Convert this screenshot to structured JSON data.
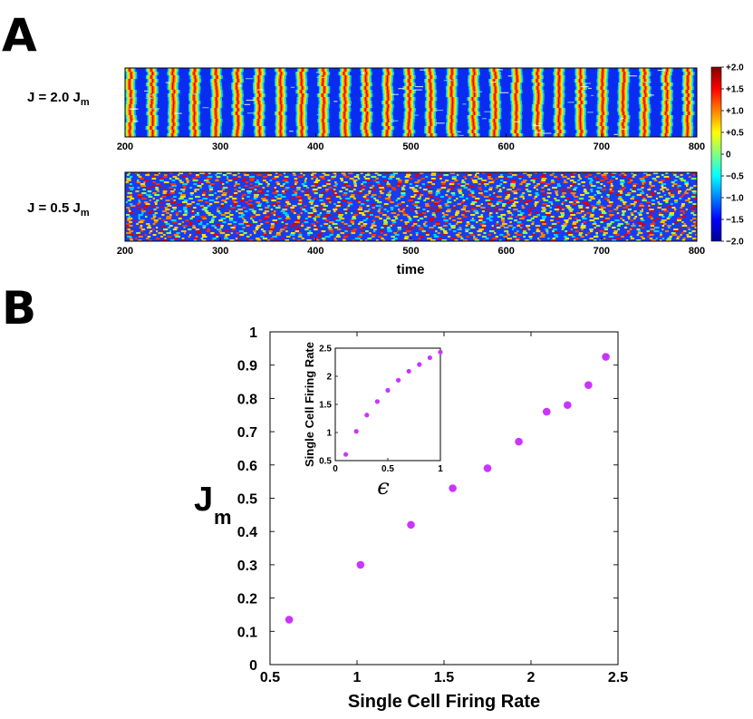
{
  "panels": {
    "a_letter": "A",
    "b_letter": "B"
  },
  "chart_data": [
    {
      "type": "heatmap",
      "panel": "A",
      "rows": [
        {
          "label_main": "J = 2.0 J",
          "label_sub": "m",
          "pattern": "synchronous",
          "band_period": 22.5
        },
        {
          "label_main": "J = 0.5 J",
          "label_sub": "m",
          "pattern": "asynchronous"
        }
      ],
      "xlim": [
        200,
        800
      ],
      "xticks": [
        "200",
        "300",
        "400",
        "500",
        "600",
        "700",
        "800"
      ],
      "xlabel": "time",
      "colorbar": {
        "range": [
          -2.0,
          2.0
        ],
        "ticks": [
          "+2.0",
          "+1.5",
          "+1.0",
          "+0.5",
          "0",
          "−0.5",
          "−1.0",
          "−1.5",
          "−2.0"
        ],
        "colors": [
          "#00008f",
          "#0000ff",
          "#0080ff",
          "#00ffff",
          "#80ff80",
          "#ffff00",
          "#ff8000",
          "#ff0000",
          "#800000"
        ]
      }
    },
    {
      "type": "scatter",
      "panel": "B",
      "xlabel": "Single Cell Firing Rate",
      "ylabel_main": "J",
      "ylabel_sub": "m",
      "xlim": [
        0.5,
        2.5
      ],
      "ylim": [
        0,
        1
      ],
      "xticks": [
        "0.5",
        "1",
        "1.5",
        "2",
        "2.5"
      ],
      "yticks": [
        "0",
        "0.1",
        "0.2",
        "0.3",
        "0.4",
        "0.5",
        "0.6",
        "0.7",
        "0.8",
        "0.9",
        "1"
      ],
      "x": [
        0.61,
        1.02,
        1.31,
        1.55,
        1.75,
        1.93,
        2.09,
        2.21,
        2.33,
        2.43
      ],
      "y": [
        0.135,
        0.3,
        0.42,
        0.53,
        0.59,
        0.67,
        0.76,
        0.78,
        0.84,
        0.925
      ],
      "marker_color": "#cc33ff",
      "inset": {
        "type": "scatter",
        "xlabel": "ϵ",
        "ylabel": "Single Cell Firing Rate",
        "xlim": [
          0,
          1
        ],
        "ylim": [
          0.5,
          2.5
        ],
        "xticks": [
          "0",
          "0.5",
          "1"
        ],
        "yticks": [
          "0.5",
          "1",
          "1.5",
          "2",
          "2.5"
        ],
        "x": [
          0.1,
          0.2,
          0.3,
          0.4,
          0.5,
          0.6,
          0.7,
          0.8,
          0.9,
          1.0
        ],
        "y": [
          0.61,
          1.02,
          1.31,
          1.55,
          1.75,
          1.93,
          2.09,
          2.21,
          2.33,
          2.43
        ]
      }
    }
  ]
}
